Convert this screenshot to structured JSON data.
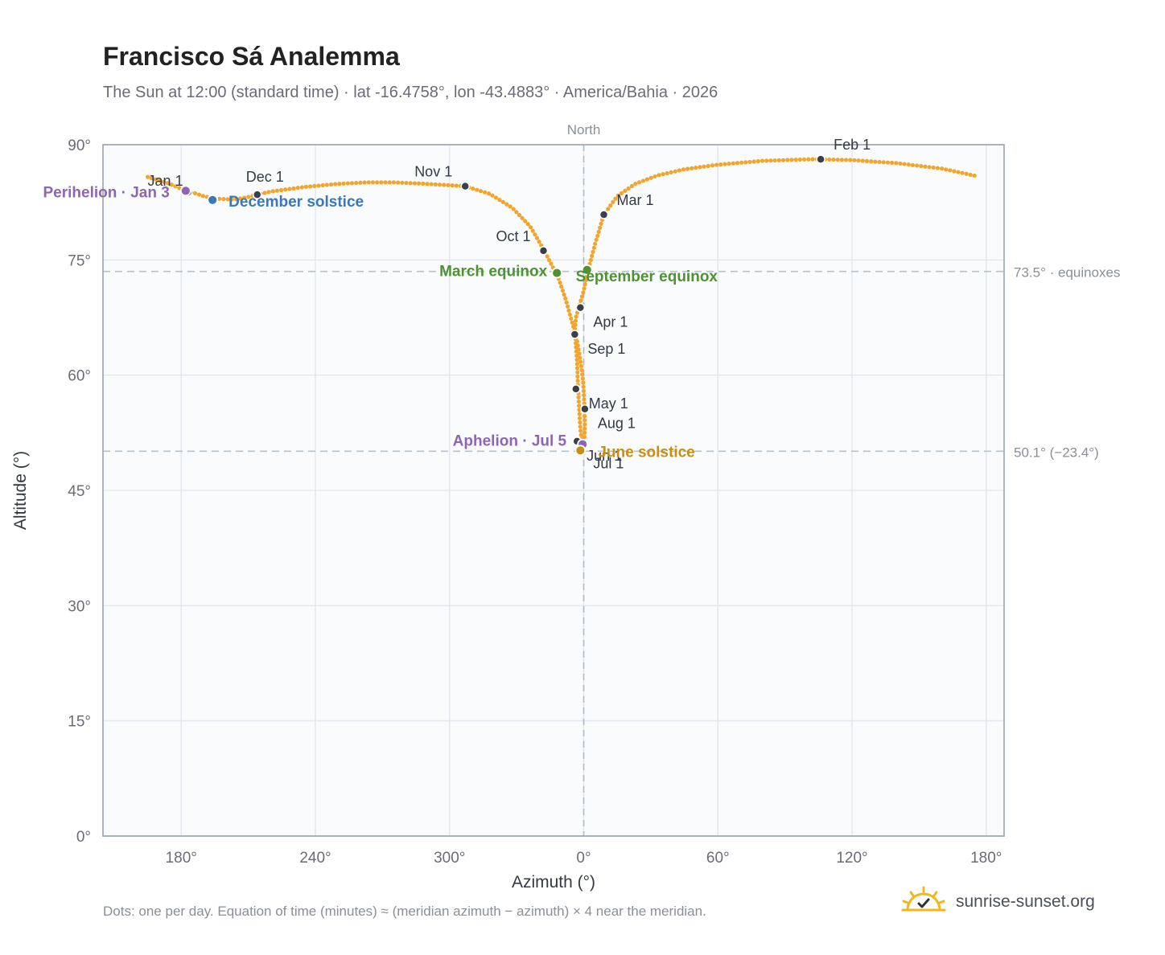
{
  "title": "Francisco Sá Analemma",
  "subtitle": "The Sun at 12:00 (standard time) · lat -16.4758°, lon -43.4883° · America/Bahia · 2026",
  "footnote": "Dots: one per day. Equation of time (minutes) ≈ (meridian azimuth − azimuth) × 4 near the meridian.",
  "brand": {
    "text": "sunrise-sunset.org",
    "icon": "sun-check-icon"
  },
  "colors": {
    "curve": "#f2a52a",
    "month_dot": "#3a3f4a",
    "perihelion": "#8e65b6",
    "aphelion": "#8e65b6",
    "december_solstice": "#3a78b8",
    "june_solstice": "#c98f12",
    "equinox": "#4e9234",
    "grid": "#e4e9ef",
    "plot_bg": "#f9fbfd",
    "axis_text": "#6b6b78"
  },
  "chart_data": {
    "type": "scatter",
    "xlabel": "Azimuth (°)",
    "ylabel": "Altitude (°)",
    "x_ticks": [
      "180°",
      "240°",
      "300°",
      "0°",
      "60°",
      "120°",
      "180°"
    ],
    "x_tick_values": [
      180,
      240,
      300,
      360,
      420,
      480,
      540
    ],
    "xlim": [
      145,
      548
    ],
    "y_ticks": [
      "0°",
      "15°",
      "30°",
      "45°",
      "60°",
      "75°",
      "90°"
    ],
    "y_tick_values": [
      0,
      15,
      30,
      45,
      60,
      75,
      90
    ],
    "ylim": [
      0,
      90
    ],
    "north_label": "North",
    "north_x": 360,
    "reference_lines": [
      {
        "value": 73.5,
        "label": "73.5° · equinoxes"
      },
      {
        "value": 50.1,
        "label": "50.1° (−23.4°)"
      }
    ],
    "series": [
      {
        "name": "",
        "path": [
          [
            165.0,
            85.8
          ],
          [
            174.0,
            85.0
          ],
          [
            182.0,
            84.0
          ],
          [
            186.0,
            83.7
          ],
          [
            190.0,
            83.3
          ],
          [
            195.0,
            83.0
          ],
          [
            200.0,
            82.9
          ],
          [
            205.0,
            82.9
          ],
          [
            210.0,
            83.2
          ],
          [
            214.0,
            83.5
          ],
          [
            220.0,
            83.9
          ],
          [
            235.0,
            84.5
          ],
          [
            250.0,
            84.9
          ],
          [
            263.0,
            85.1
          ],
          [
            275.0,
            85.1
          ],
          [
            290.0,
            84.9
          ],
          [
            307.0,
            84.6
          ],
          [
            318.0,
            83.6
          ],
          [
            328.0,
            81.8
          ],
          [
            336.0,
            79.4
          ],
          [
            342.0,
            76.4
          ],
          [
            347.0,
            73.6
          ],
          [
            349.0,
            72.4
          ],
          [
            352.0,
            69.8
          ],
          [
            356.0,
            65.6
          ],
          [
            357.0,
            62.0
          ],
          [
            357.5,
            58.0
          ],
          [
            358.0,
            55.5
          ],
          [
            358.5,
            53.0
          ],
          [
            359.0,
            51.8
          ],
          [
            359.5,
            50.6
          ],
          [
            360.0,
            50.5
          ],
          [
            360.2,
            51.0
          ],
          [
            360.5,
            53.5
          ],
          [
            360.3,
            56.0
          ],
          [
            359.8,
            59.0
          ],
          [
            358.5,
            62.0
          ],
          [
            357.0,
            64.5
          ],
          [
            356.0,
            65.6
          ],
          [
            356.5,
            67.5
          ],
          [
            358.0,
            69.0
          ],
          [
            360.0,
            71.0
          ],
          [
            362.0,
            73.7
          ],
          [
            365.0,
            77.0
          ],
          [
            369.0,
            80.9
          ],
          [
            375.0,
            83.3
          ],
          [
            383.0,
            84.9
          ],
          [
            393.0,
            86.0
          ],
          [
            405.0,
            86.8
          ],
          [
            420.0,
            87.4
          ],
          [
            440.0,
            87.9
          ],
          [
            460.0,
            88.1
          ],
          [
            466.0,
            88.1
          ],
          [
            480.0,
            88.0
          ],
          [
            500.0,
            87.6
          ],
          [
            520.0,
            86.9
          ],
          [
            536.0,
            85.9
          ]
        ]
      }
    ],
    "month_markers": [
      {
        "label": "Jan 1",
        "x": 183.0,
        "y": 83.8
      },
      {
        "label": "Feb 1",
        "x": 466.0,
        "y": 88.1
      },
      {
        "label": "Mar 1",
        "x": 369.0,
        "y": 80.9
      },
      {
        "label": "Apr 1",
        "x": 358.5,
        "y": 68.8
      },
      {
        "label": "May 1",
        "x": 356.5,
        "y": 58.2
      },
      {
        "label": "Jun 1",
        "x": 357.0,
        "y": 51.4
      },
      {
        "label": "Jul 1",
        "x": 358.5,
        "y": 50.2
      },
      {
        "label": "Aug 1",
        "x": 360.5,
        "y": 55.6
      },
      {
        "label": "Sep 1",
        "x": 356.0,
        "y": 65.3
      },
      {
        "label": "Oct 1",
        "x": 342.0,
        "y": 76.2
      },
      {
        "label": "Nov 1",
        "x": 307.0,
        "y": 84.6
      },
      {
        "label": "Dec 1",
        "x": 214.0,
        "y": 83.5
      }
    ],
    "events": [
      {
        "label": "Perihelion · Jan 3",
        "x": 182.0,
        "y": 84.0,
        "kind": "perihelion"
      },
      {
        "label": "December solstice",
        "x": 194.0,
        "y": 82.8,
        "kind": "december_solstice"
      },
      {
        "label": "March equinox",
        "x": 348.0,
        "y": 73.3,
        "kind": "equinox"
      },
      {
        "label": "September equinox",
        "x": 361.5,
        "y": 73.7,
        "kind": "equinox"
      },
      {
        "label": "Aphelion · Jul 5",
        "x": 359.5,
        "y": 51.0,
        "kind": "aphelion"
      },
      {
        "label": "June solstice",
        "x": 358.5,
        "y": 50.2,
        "kind": "june_solstice"
      }
    ]
  }
}
